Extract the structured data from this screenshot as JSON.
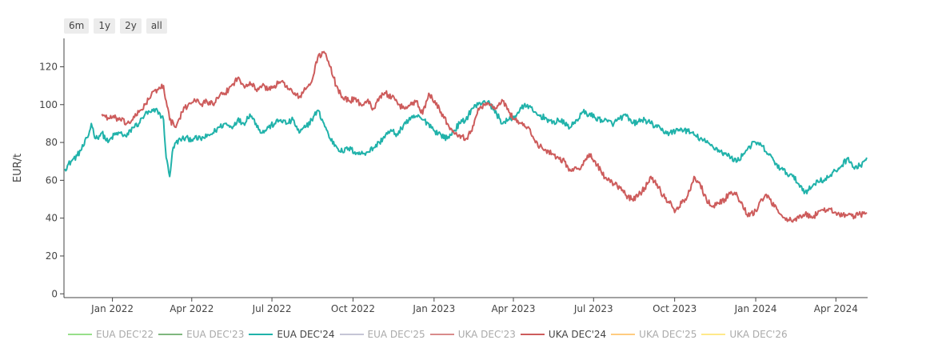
{
  "range_buttons": [
    "6m",
    "1y",
    "2y",
    "all"
  ],
  "chart_data": {
    "type": "line",
    "ylabel": "EUR/t",
    "ylim": [
      -2,
      135
    ],
    "yticks": [
      0,
      20,
      40,
      60,
      80,
      100,
      120
    ],
    "xlim": [
      "2021-11-07",
      "2024-05-07"
    ],
    "xticks": [
      {
        "date": "2022-01-01",
        "label": "Jan 2022"
      },
      {
        "date": "2022-04-01",
        "label": "Apr 2022"
      },
      {
        "date": "2022-07-01",
        "label": "Jul 2022"
      },
      {
        "date": "2022-10-01",
        "label": "Oct 2022"
      },
      {
        "date": "2023-01-01",
        "label": "Jan 2023"
      },
      {
        "date": "2023-04-01",
        "label": "Apr 2023"
      },
      {
        "date": "2023-07-01",
        "label": "Jul 2023"
      },
      {
        "date": "2023-10-01",
        "label": "Oct 2023"
      },
      {
        "date": "2024-01-01",
        "label": "Jan 2024"
      },
      {
        "date": "2024-04-01",
        "label": "Apr 2024"
      }
    ],
    "grid": false,
    "legend_position": "bottom",
    "legend": [
      {
        "name": "EUA DEC'22",
        "color": "#98df8a",
        "active": false
      },
      {
        "name": "EUA DEC'23",
        "color": "#7fb77e",
        "active": false
      },
      {
        "name": "EUA DEC'24",
        "color": "#20b2aa",
        "active": true
      },
      {
        "name": "EUA DEC'25",
        "color": "#c5c5d6",
        "active": false
      },
      {
        "name": "UKA DEC'23",
        "color": "#d98b8b",
        "active": false
      },
      {
        "name": "UKA DEC'24",
        "color": "#cd5c5c",
        "active": true
      },
      {
        "name": "UKA DEC'25",
        "color": "#ffcc80",
        "active": false
      },
      {
        "name": "UKA DEC'26",
        "color": "#ffe98a",
        "active": false
      }
    ],
    "series": [
      {
        "name": "EUA DEC'24",
        "color": "#20b2aa",
        "points": [
          [
            "2021-11-08",
            66
          ],
          [
            "2021-11-15",
            70
          ],
          [
            "2021-11-22",
            73
          ],
          [
            "2021-11-29",
            78
          ],
          [
            "2021-12-05",
            84
          ],
          [
            "2021-12-08",
            90
          ],
          [
            "2021-12-13",
            82
          ],
          [
            "2021-12-20",
            85
          ],
          [
            "2021-12-27",
            80
          ],
          [
            "2022-01-03",
            84
          ],
          [
            "2022-01-10",
            85
          ],
          [
            "2022-01-17",
            83
          ],
          [
            "2022-01-24",
            88
          ],
          [
            "2022-01-31",
            90
          ],
          [
            "2022-02-07",
            95
          ],
          [
            "2022-02-14",
            96
          ],
          [
            "2022-02-21",
            97
          ],
          [
            "2022-02-28",
            92
          ],
          [
            "2022-03-03",
            72
          ],
          [
            "2022-03-07",
            62
          ],
          [
            "2022-03-10",
            75
          ],
          [
            "2022-03-14",
            80
          ],
          [
            "2022-03-21",
            82
          ],
          [
            "2022-03-28",
            82
          ],
          [
            "2022-04-04",
            82
          ],
          [
            "2022-04-11",
            82
          ],
          [
            "2022-04-18",
            83
          ],
          [
            "2022-04-25",
            85
          ],
          [
            "2022-05-02",
            88
          ],
          [
            "2022-05-09",
            90
          ],
          [
            "2022-05-16",
            88
          ],
          [
            "2022-05-23",
            92
          ],
          [
            "2022-05-30",
            90
          ],
          [
            "2022-06-06",
            95
          ],
          [
            "2022-06-13",
            90
          ],
          [
            "2022-06-20",
            85
          ],
          [
            "2022-06-27",
            88
          ],
          [
            "2022-07-04",
            90
          ],
          [
            "2022-07-11",
            92
          ],
          [
            "2022-07-18",
            90
          ],
          [
            "2022-07-25",
            92
          ],
          [
            "2022-08-01",
            85
          ],
          [
            "2022-08-08",
            88
          ],
          [
            "2022-08-15",
            92
          ],
          [
            "2022-08-22",
            97
          ],
          [
            "2022-08-29",
            90
          ],
          [
            "2022-09-05",
            82
          ],
          [
            "2022-09-12",
            78
          ],
          [
            "2022-09-19",
            75
          ],
          [
            "2022-09-26",
            77
          ],
          [
            "2022-10-03",
            75
          ],
          [
            "2022-10-10",
            74
          ],
          [
            "2022-10-17",
            75
          ],
          [
            "2022-10-24",
            77
          ],
          [
            "2022-10-31",
            80
          ],
          [
            "2022-11-07",
            84
          ],
          [
            "2022-11-14",
            86
          ],
          [
            "2022-11-21",
            84
          ],
          [
            "2022-11-28",
            90
          ],
          [
            "2022-12-05",
            92
          ],
          [
            "2022-12-12",
            94
          ],
          [
            "2022-12-19",
            92
          ],
          [
            "2022-12-26",
            90
          ],
          [
            "2023-01-02",
            86
          ],
          [
            "2023-01-09",
            84
          ],
          [
            "2023-01-16",
            82
          ],
          [
            "2023-01-23",
            86
          ],
          [
            "2023-01-30",
            90
          ],
          [
            "2023-02-06",
            92
          ],
          [
            "2023-02-13",
            98
          ],
          [
            "2023-02-20",
            100
          ],
          [
            "2023-02-27",
            102
          ],
          [
            "2023-03-06",
            100
          ],
          [
            "2023-03-13",
            95
          ],
          [
            "2023-03-20",
            90
          ],
          [
            "2023-03-27",
            92
          ],
          [
            "2023-04-03",
            94
          ],
          [
            "2023-04-10",
            98
          ],
          [
            "2023-04-17",
            100
          ],
          [
            "2023-04-24",
            96
          ],
          [
            "2023-05-01",
            94
          ],
          [
            "2023-05-08",
            93
          ],
          [
            "2023-05-15",
            90
          ],
          [
            "2023-05-22",
            92
          ],
          [
            "2023-05-29",
            90
          ],
          [
            "2023-06-05",
            88
          ],
          [
            "2023-06-12",
            92
          ],
          [
            "2023-06-19",
            96
          ],
          [
            "2023-06-26",
            95
          ],
          [
            "2023-07-03",
            93
          ],
          [
            "2023-07-10",
            92
          ],
          [
            "2023-07-17",
            91
          ],
          [
            "2023-07-24",
            90
          ],
          [
            "2023-07-31",
            93
          ],
          [
            "2023-08-07",
            94
          ],
          [
            "2023-08-14",
            90
          ],
          [
            "2023-08-21",
            91
          ],
          [
            "2023-08-28",
            92
          ],
          [
            "2023-09-04",
            90
          ],
          [
            "2023-09-11",
            88
          ],
          [
            "2023-09-18",
            86
          ],
          [
            "2023-09-25",
            85
          ],
          [
            "2023-10-02",
            86
          ],
          [
            "2023-10-09",
            87
          ],
          [
            "2023-10-16",
            86
          ],
          [
            "2023-10-23",
            84
          ],
          [
            "2023-10-30",
            82
          ],
          [
            "2023-11-06",
            80
          ],
          [
            "2023-11-13",
            78
          ],
          [
            "2023-11-20",
            76
          ],
          [
            "2023-11-27",
            74
          ],
          [
            "2023-12-04",
            72
          ],
          [
            "2023-12-11",
            70
          ],
          [
            "2023-12-18",
            74
          ],
          [
            "2023-12-25",
            78
          ],
          [
            "2024-01-01",
            80
          ],
          [
            "2024-01-08",
            78
          ],
          [
            "2024-01-15",
            74
          ],
          [
            "2024-01-22",
            70
          ],
          [
            "2024-01-29",
            66
          ],
          [
            "2024-02-05",
            64
          ],
          [
            "2024-02-12",
            62
          ],
          [
            "2024-02-19",
            58
          ],
          [
            "2024-02-26",
            54
          ],
          [
            "2024-03-04",
            56
          ],
          [
            "2024-03-11",
            60
          ],
          [
            "2024-03-18",
            60
          ],
          [
            "2024-03-25",
            62
          ],
          [
            "2024-04-01",
            65
          ],
          [
            "2024-04-08",
            68
          ],
          [
            "2024-04-15",
            72
          ],
          [
            "2024-04-22",
            66
          ],
          [
            "2024-04-29",
            68
          ],
          [
            "2024-05-06",
            72
          ]
        ]
      },
      {
        "name": "UKA DEC'24",
        "color": "#cd5c5c",
        "points": [
          [
            "2021-12-20",
            95
          ],
          [
            "2021-12-27",
            93
          ],
          [
            "2022-01-03",
            93
          ],
          [
            "2022-01-10",
            92
          ],
          [
            "2022-01-17",
            90
          ],
          [
            "2022-01-24",
            92
          ],
          [
            "2022-01-31",
            96
          ],
          [
            "2022-02-07",
            100
          ],
          [
            "2022-02-14",
            105
          ],
          [
            "2022-02-21",
            108
          ],
          [
            "2022-02-28",
            110
          ],
          [
            "2022-03-03",
            102
          ],
          [
            "2022-03-07",
            92
          ],
          [
            "2022-03-14",
            88
          ],
          [
            "2022-03-21",
            96
          ],
          [
            "2022-03-28",
            100
          ],
          [
            "2022-04-04",
            103
          ],
          [
            "2022-04-11",
            100
          ],
          [
            "2022-04-18",
            102
          ],
          [
            "2022-04-25",
            100
          ],
          [
            "2022-05-02",
            104
          ],
          [
            "2022-05-09",
            106
          ],
          [
            "2022-05-16",
            110
          ],
          [
            "2022-05-23",
            114
          ],
          [
            "2022-05-30",
            110
          ],
          [
            "2022-06-06",
            112
          ],
          [
            "2022-06-13",
            108
          ],
          [
            "2022-06-20",
            110
          ],
          [
            "2022-06-27",
            108
          ],
          [
            "2022-07-04",
            110
          ],
          [
            "2022-07-11",
            112
          ],
          [
            "2022-07-18",
            110
          ],
          [
            "2022-07-25",
            106
          ],
          [
            "2022-08-01",
            104
          ],
          [
            "2022-08-08",
            108
          ],
          [
            "2022-08-15",
            112
          ],
          [
            "2022-08-22",
            125
          ],
          [
            "2022-08-29",
            128
          ],
          [
            "2022-09-05",
            120
          ],
          [
            "2022-09-12",
            110
          ],
          [
            "2022-09-19",
            104
          ],
          [
            "2022-09-26",
            102
          ],
          [
            "2022-10-03",
            103
          ],
          [
            "2022-10-10",
            100
          ],
          [
            "2022-10-17",
            102
          ],
          [
            "2022-10-24",
            98
          ],
          [
            "2022-10-31",
            104
          ],
          [
            "2022-11-07",
            106
          ],
          [
            "2022-11-14",
            104
          ],
          [
            "2022-11-21",
            100
          ],
          [
            "2022-11-28",
            98
          ],
          [
            "2022-12-05",
            100
          ],
          [
            "2022-12-12",
            102
          ],
          [
            "2022-12-19",
            95
          ],
          [
            "2022-12-26",
            106
          ],
          [
            "2023-01-02",
            102
          ],
          [
            "2023-01-09",
            96
          ],
          [
            "2023-01-16",
            90
          ],
          [
            "2023-01-23",
            86
          ],
          [
            "2023-01-30",
            84
          ],
          [
            "2023-02-06",
            82
          ],
          [
            "2023-02-13",
            86
          ],
          [
            "2023-02-20",
            98
          ],
          [
            "2023-02-27",
            100
          ],
          [
            "2023-03-06",
            100
          ],
          [
            "2023-03-13",
            98
          ],
          [
            "2023-03-20",
            102
          ],
          [
            "2023-03-27",
            96
          ],
          [
            "2023-04-03",
            92
          ],
          [
            "2023-04-10",
            90
          ],
          [
            "2023-04-17",
            88
          ],
          [
            "2023-04-24",
            82
          ],
          [
            "2023-05-01",
            78
          ],
          [
            "2023-05-08",
            76
          ],
          [
            "2023-05-15",
            74
          ],
          [
            "2023-05-22",
            72
          ],
          [
            "2023-05-29",
            70
          ],
          [
            "2023-06-05",
            65
          ],
          [
            "2023-06-12",
            66
          ],
          [
            "2023-06-19",
            68
          ],
          [
            "2023-06-26",
            74
          ],
          [
            "2023-07-03",
            70
          ],
          [
            "2023-07-10",
            64
          ],
          [
            "2023-07-17",
            60
          ],
          [
            "2023-07-24",
            58
          ],
          [
            "2023-07-31",
            56
          ],
          [
            "2023-08-07",
            52
          ],
          [
            "2023-08-14",
            50
          ],
          [
            "2023-08-21",
            52
          ],
          [
            "2023-08-28",
            56
          ],
          [
            "2023-09-04",
            62
          ],
          [
            "2023-09-11",
            58
          ],
          [
            "2023-09-18",
            52
          ],
          [
            "2023-09-25",
            48
          ],
          [
            "2023-10-02",
            44
          ],
          [
            "2023-10-09",
            48
          ],
          [
            "2023-10-16",
            52
          ],
          [
            "2023-10-23",
            62
          ],
          [
            "2023-10-30",
            58
          ],
          [
            "2023-11-06",
            50
          ],
          [
            "2023-11-13",
            46
          ],
          [
            "2023-11-20",
            48
          ],
          [
            "2023-11-27",
            50
          ],
          [
            "2023-12-04",
            54
          ],
          [
            "2023-12-11",
            52
          ],
          [
            "2023-12-18",
            45
          ],
          [
            "2023-12-25",
            41
          ],
          [
            "2024-01-01",
            44
          ],
          [
            "2024-01-08",
            50
          ],
          [
            "2024-01-15",
            52
          ],
          [
            "2024-01-22",
            46
          ],
          [
            "2024-01-29",
            42
          ],
          [
            "2024-02-05",
            40
          ],
          [
            "2024-02-12",
            38
          ],
          [
            "2024-02-19",
            40
          ],
          [
            "2024-02-26",
            42
          ],
          [
            "2024-03-04",
            41
          ],
          [
            "2024-03-11",
            42
          ],
          [
            "2024-03-18",
            44
          ],
          [
            "2024-03-25",
            45
          ],
          [
            "2024-04-01",
            43
          ],
          [
            "2024-04-08",
            41
          ],
          [
            "2024-04-15",
            42
          ],
          [
            "2024-04-22",
            41
          ],
          [
            "2024-04-29",
            42
          ],
          [
            "2024-05-06",
            43
          ]
        ]
      }
    ]
  }
}
